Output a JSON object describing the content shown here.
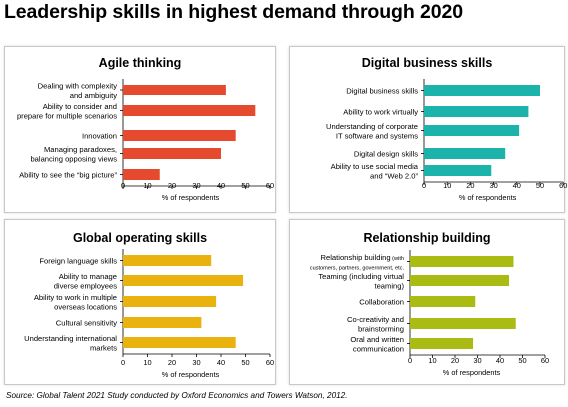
{
  "header": {
    "title": "Leadership skills in highest demand through 2020"
  },
  "footer": {
    "source": "Source: Global Talent 2021 Study conducted by Oxford Economics and Towers Watson, 2012."
  },
  "chart_data": [
    {
      "type": "bar",
      "orientation": "horizontal",
      "title": "Agile thinking",
      "xlabel": "% of respondents",
      "xlim": [
        0,
        60
      ],
      "xticks": [
        0,
        10,
        20,
        30,
        40,
        50,
        60
      ],
      "color": "#e64a2e",
      "categories": [
        [
          "Dealing with complexity",
          "and ambiguity"
        ],
        [
          "Ability to consider and",
          "prepare for multiple scenarios"
        ],
        [
          "Innovation"
        ],
        [
          "Managing paradoxes,",
          "balancing opposing views"
        ],
        [
          "Ability to see the “big picture”"
        ]
      ],
      "values": [
        42,
        54,
        46,
        40,
        15
      ]
    },
    {
      "type": "bar",
      "orientation": "horizontal",
      "title": "Digital business skills",
      "xlabel": "% of respondents",
      "xlim": [
        0,
        60
      ],
      "xticks": [
        0,
        10,
        20,
        30,
        40,
        50,
        60
      ],
      "color": "#1cb3ab",
      "categories": [
        [
          "Digital business skills"
        ],
        [
          "Ability to work virtually"
        ],
        [
          "Understanding of corporate",
          "IT software and systems"
        ],
        [
          "Digital design skills"
        ],
        [
          "Ability to use social media",
          "and “Web 2.0”"
        ]
      ],
      "values": [
        50,
        45,
        41,
        35,
        29
      ]
    },
    {
      "type": "bar",
      "orientation": "horizontal",
      "title": "Global operating skills",
      "xlabel": "% of respondents",
      "xlim": [
        0,
        60
      ],
      "xticks": [
        0,
        10,
        20,
        30,
        40,
        50,
        60
      ],
      "color": "#e9b20e",
      "categories": [
        [
          "Foreign language skills"
        ],
        [
          "Ability to manage",
          "diverse employees"
        ],
        [
          "Ability to work in multiple",
          "overseas locations"
        ],
        [
          "Cultural sensitivity"
        ],
        [
          "Understanding international",
          "markets"
        ]
      ],
      "values": [
        36,
        49,
        38,
        32,
        46
      ]
    },
    {
      "type": "bar",
      "orientation": "horizontal",
      "title": "Relationship building",
      "xlabel": "% of respondents",
      "xlim": [
        0,
        60
      ],
      "xticks": [
        0,
        10,
        20,
        30,
        40,
        50,
        60
      ],
      "color": "#aabb14",
      "categories": [
        [
          "Relationship building",
          "customers, partners, government, etc."
        ],
        [
          "Teaming (including virtual",
          "teaming)"
        ],
        [
          "Collaboration"
        ],
        [
          "Co-creativity and",
          "brainstorming"
        ],
        [
          "Oral and written",
          "communication"
        ]
      ],
      "label_suffix": [
        "(with",
        "",
        "",
        "",
        ""
      ],
      "values": [
        46,
        44,
        29,
        47,
        28
      ]
    }
  ]
}
